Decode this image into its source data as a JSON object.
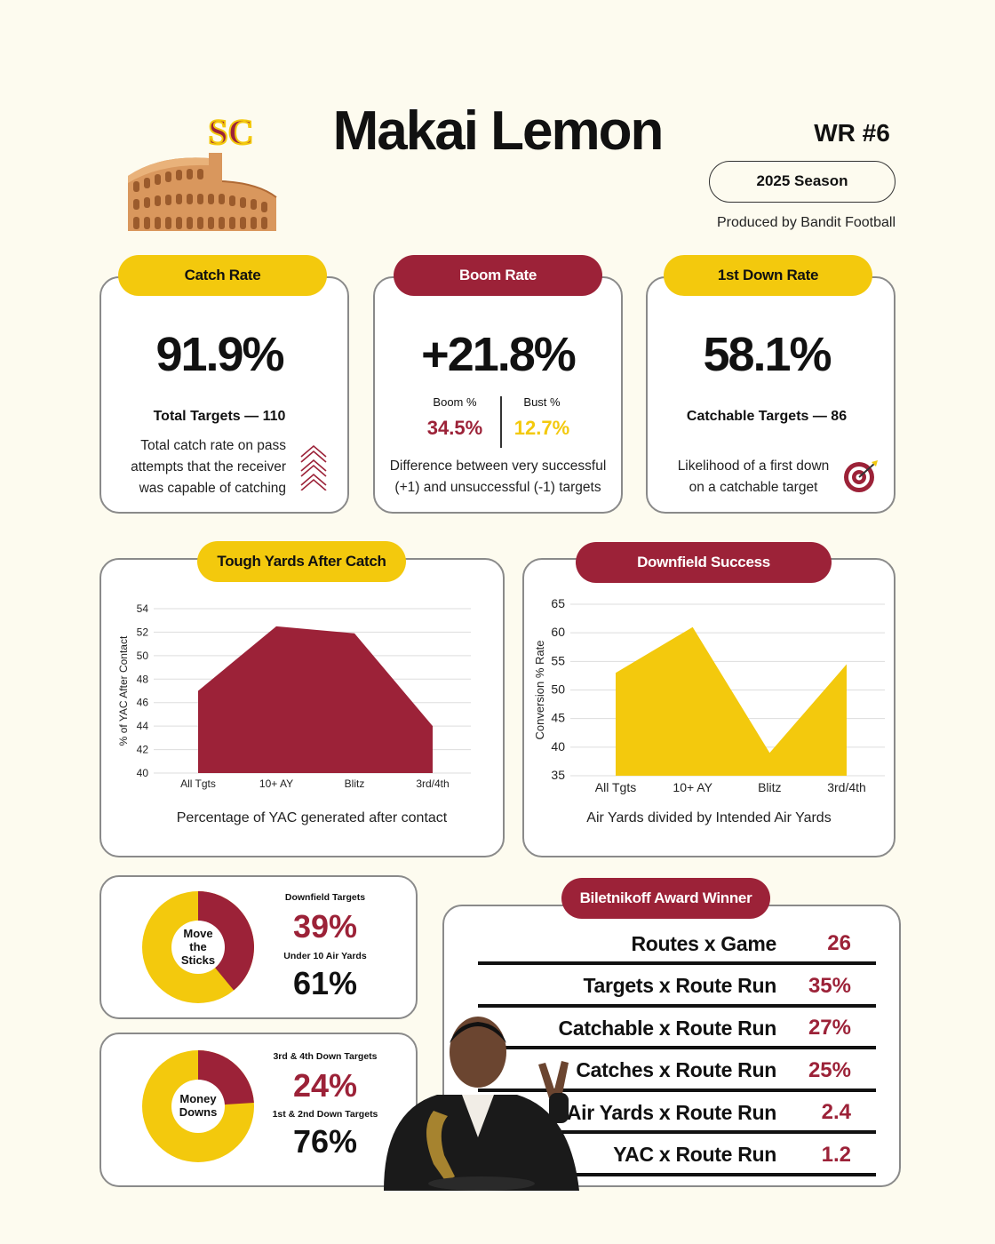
{
  "header": {
    "player_name": "Makai Lemon",
    "position": "WR #6",
    "season": "2025 Season",
    "produced_by": "Produced by Bandit Football",
    "team_logo_text": "SC"
  },
  "colors": {
    "background": "#fdfbef",
    "gold": "#f3c90d",
    "cardinal": "#9c2238"
  },
  "cards": {
    "catch_rate": {
      "label": "Catch Rate",
      "value": "91.9%",
      "sub": "Total Targets — 110",
      "desc": [
        "Total catch rate on pass",
        "attempts that the receiver",
        "was capable of catching"
      ],
      "icon": "chevron-up-icon"
    },
    "boom_rate": {
      "label": "Boom Rate",
      "value": "+21.8%",
      "boom_label": "Boom %",
      "boom_value": "34.5%",
      "bust_label": "Bust %",
      "bust_value": "12.7%",
      "desc": [
        "Difference between very successful",
        "(+1) and unsuccessful (-1) targets"
      ]
    },
    "first_down_rate": {
      "label": "1st Down Rate",
      "value": "58.1%",
      "sub": "Catchable Targets — 86",
      "desc": [
        "Likelihood of a first down",
        "on a catchable target"
      ],
      "icon": "target-icon"
    }
  },
  "chart_data": [
    {
      "type": "area",
      "title": "Tough Yards After Catch",
      "categories": [
        "All Tgts",
        "10+ AY",
        "Blitz",
        "3rd/4th"
      ],
      "values": [
        47,
        52.5,
        51.9,
        44
      ],
      "ylabel": "% of YAC After Contact",
      "caption": "Percentage of YAC generated after contact",
      "ylim": [
        40,
        54
      ],
      "yticks": [
        40,
        42,
        44,
        46,
        48,
        50,
        52,
        54
      ],
      "color": "#9c2238",
      "grid": true
    },
    {
      "type": "area",
      "title": "Downfield Success",
      "categories": [
        "All Tgts",
        "10+ AY",
        "Blitz",
        "3rd/4th"
      ],
      "values": [
        53,
        61,
        39,
        54.5
      ],
      "ylabel": "Conversion % Rate",
      "caption": "Air Yards divided by Intended Air Yards",
      "ylim": [
        35,
        65
      ],
      "yticks": [
        35,
        40,
        45,
        50,
        55,
        60,
        65
      ],
      "color": "#f3c90d",
      "grid": true
    }
  ],
  "donuts": {
    "move_sticks": {
      "center": [
        "Move",
        "the",
        "Sticks"
      ],
      "label_a": "Downfield Targets",
      "value_a": "39%",
      "label_b": "Under 10 Air Yards",
      "value_b": "61%",
      "fraction_a": 0.39
    },
    "money_downs": {
      "center": [
        "Money",
        "Downs"
      ],
      "label_a": "3rd & 4th Down Targets",
      "value_a": "24%",
      "label_b": "1st & 2nd Down Targets",
      "value_b": "76%",
      "fraction_a": 0.24
    }
  },
  "biletnikoff": {
    "label": "Biletnikoff Award Winner",
    "rows": [
      {
        "label": "Routes x Game",
        "value": "26"
      },
      {
        "label": "Targets x Route Run",
        "value": "35%"
      },
      {
        "label": "Catchable x Route Run",
        "value": "27%"
      },
      {
        "label": "Catches x Route Run",
        "value": "25%"
      },
      {
        "label": "Air Yards x Route Run",
        "value": "2.4"
      },
      {
        "label": "YAC x Route Run",
        "value": "1.2"
      }
    ]
  }
}
